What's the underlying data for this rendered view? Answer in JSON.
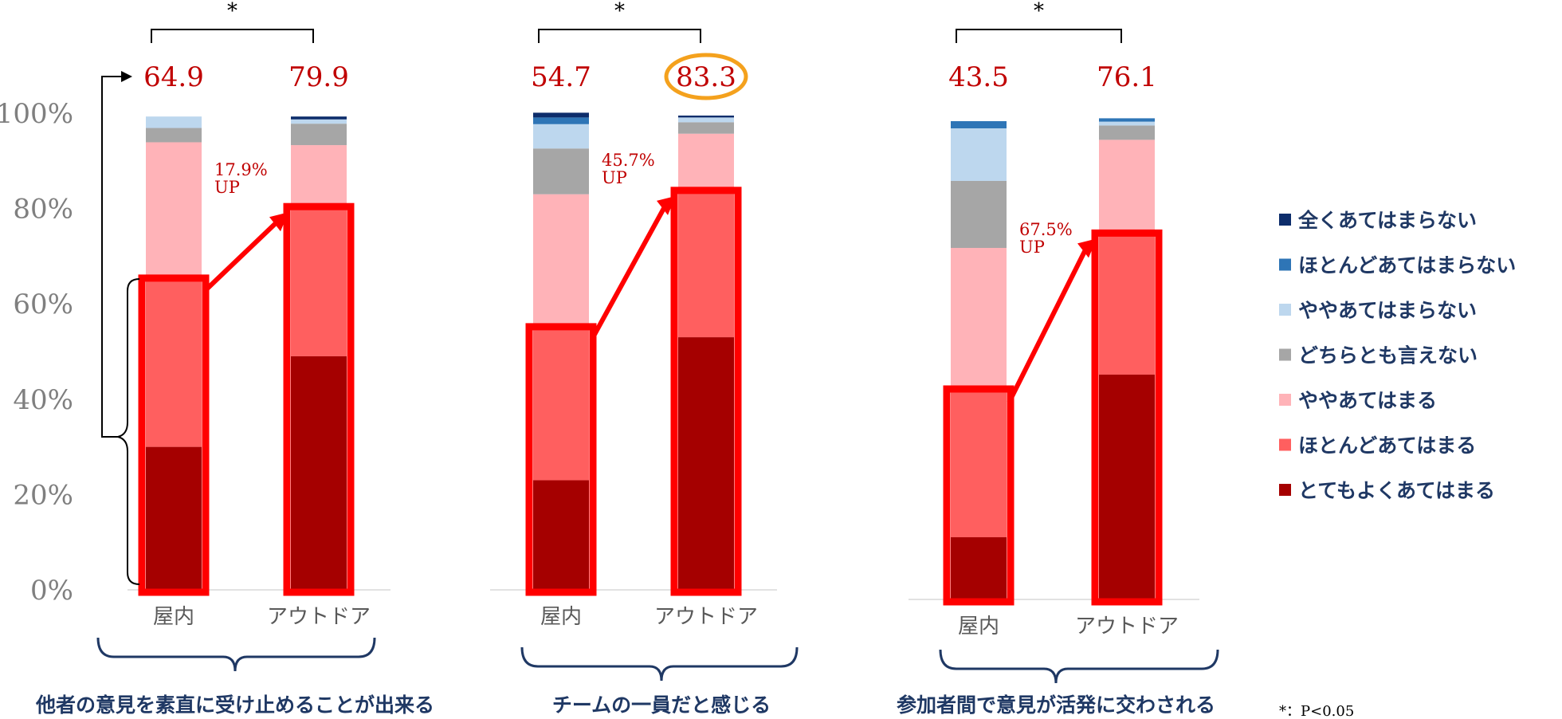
{
  "chart_data": {
    "type": "bar",
    "stacked": true,
    "y_ticks": [
      "0%",
      "20%",
      "40%",
      "60%",
      "80%",
      "100%"
    ],
    "ylim": [
      0,
      100
    ],
    "legend_position": "right",
    "legend": [
      {
        "name": "全くあてはまらない",
        "color": "#0d2d6b"
      },
      {
        "name": "ほとんどあてはまらない",
        "color": "#2e75b6"
      },
      {
        "name": "ややあてはまらない",
        "color": "#bdd7ee"
      },
      {
        "name": "どちらとも言えない",
        "color": "#a6a6a6"
      },
      {
        "name": "ややあてはまる",
        "color": "#ffb3b8"
      },
      {
        "name": "ほとんどあてはまる",
        "color": "#ff5f5f"
      },
      {
        "name": "とてもよくあてはまる",
        "color": "#a50000"
      }
    ],
    "groups": [
      {
        "title": "他者の意見を素直に受け止めることが出来る",
        "significance": "*",
        "increase_text": "17.9%",
        "increase_suffix": "UP",
        "bars": [
          {
            "category": "屋内",
            "total_label": "64.9",
            "values": {
              "とてもよくあてはまる": 30.0,
              "ほとんどあてはまる": 34.9,
              "ややあてはまる": 29.0,
              "どちらとも言えない": 3.0,
              "ややあてはまらない": 2.4,
              "ほとんどあてはまらない": 0,
              "全くあてはまらない": 0
            }
          },
          {
            "category": "アウトドア",
            "total_label": "79.9",
            "values": {
              "とてもよくあてはまる": 49.0,
              "ほとんどあてはまる": 30.9,
              "ややあてはまる": 13.4,
              "どちらとも言えない": 4.5,
              "ややあてはまらない": 0.9,
              "ほとんどあてはまらない": 0,
              "全くあてはまらない": 0.6
            }
          }
        ]
      },
      {
        "title": "チームの一員だと感じる",
        "significance": "*",
        "increase_text": "45.7%",
        "increase_suffix": "UP",
        "bars": [
          {
            "category": "屋内",
            "total_label": "54.7",
            "values": {
              "とてもよくあてはまる": 23.0,
              "ほとんどあてはまる": 31.7,
              "ややあてはまる": 28.3,
              "どちらとも言えない": 9.6,
              "ややあてはまらない": 5.1,
              "ほとんどあてはまらない": 1.4,
              "全くあてはまらない": 1.0
            }
          },
          {
            "category": "アウトドア",
            "total_label": "83.3",
            "highlight": true,
            "values": {
              "とてもよくあてはまる": 53.0,
              "ほとんどあてはまる": 30.3,
              "ややあてはまる": 12.4,
              "どちらとも言えない": 2.4,
              "ややあてはまらない": 1.0,
              "ほとんどあてはまらない": 0,
              "全くあてはまらない": 0.4
            }
          }
        ]
      },
      {
        "title": "参加者間で意見が活発に交わされる",
        "significance": "*",
        "increase_text": "67.5%",
        "increase_suffix": "UP",
        "bars": [
          {
            "category": "屋内",
            "total_label": "43.5",
            "values": {
              "とてもよくあてはまる": 13.0,
              "ほとんどあてはまる": 30.5,
              "ややあてはまる": 30.0,
              "どちらとも言えない": 14.0,
              "ややあてはまらない": 11.0,
              "ほとんどあてはまらない": 1.5,
              "全くあてはまらない": 0
            }
          },
          {
            "category": "アウトドア",
            "total_label": "76.1",
            "values": {
              "とてもよくあてはまる": 47.0,
              "ほとんどあてはまる": 29.1,
              "ややあてはまる": 20.0,
              "どちらとも言えない": 3.0,
              "ややあてはまらない": 0.8,
              "ほとんどあてはまらない": 0.7,
              "全くあてはまらない": 0
            }
          }
        ]
      }
    ],
    "note": "*：P<0.05"
  }
}
